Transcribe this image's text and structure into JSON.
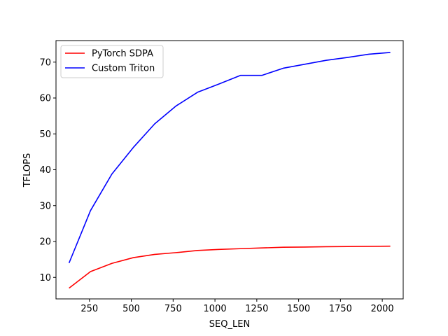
{
  "chart_data": {
    "type": "line",
    "title": "",
    "xlabel": "SEQ_LEN",
    "ylabel": "TFLOPS",
    "xlim": [
      50,
      2125
    ],
    "ylim": [
      4,
      76
    ],
    "xticks": [
      250,
      500,
      750,
      1000,
      1250,
      1500,
      1750,
      2000
    ],
    "yticks": [
      10,
      20,
      30,
      40,
      50,
      60,
      70
    ],
    "grid": false,
    "legend_position": "upper-left",
    "x": [
      128,
      256,
      384,
      512,
      640,
      768,
      896,
      1024,
      1152,
      1280,
      1408,
      1536,
      1664,
      1792,
      1920,
      2048
    ],
    "series": [
      {
        "name": "PyTorch SDPA",
        "color": "#ff0000",
        "values": [
          7.0,
          11.6,
          13.9,
          15.5,
          16.4,
          16.9,
          17.5,
          17.8,
          18.0,
          18.2,
          18.4,
          18.45,
          18.55,
          18.6,
          18.65,
          18.7
        ]
      },
      {
        "name": "Custom Triton",
        "color": "#0000ff",
        "values": [
          14.0,
          28.6,
          38.8,
          46.2,
          52.8,
          57.8,
          61.6,
          63.9,
          66.3,
          66.3,
          68.3,
          69.4,
          70.5,
          71.3,
          72.2,
          72.7
        ]
      }
    ]
  }
}
